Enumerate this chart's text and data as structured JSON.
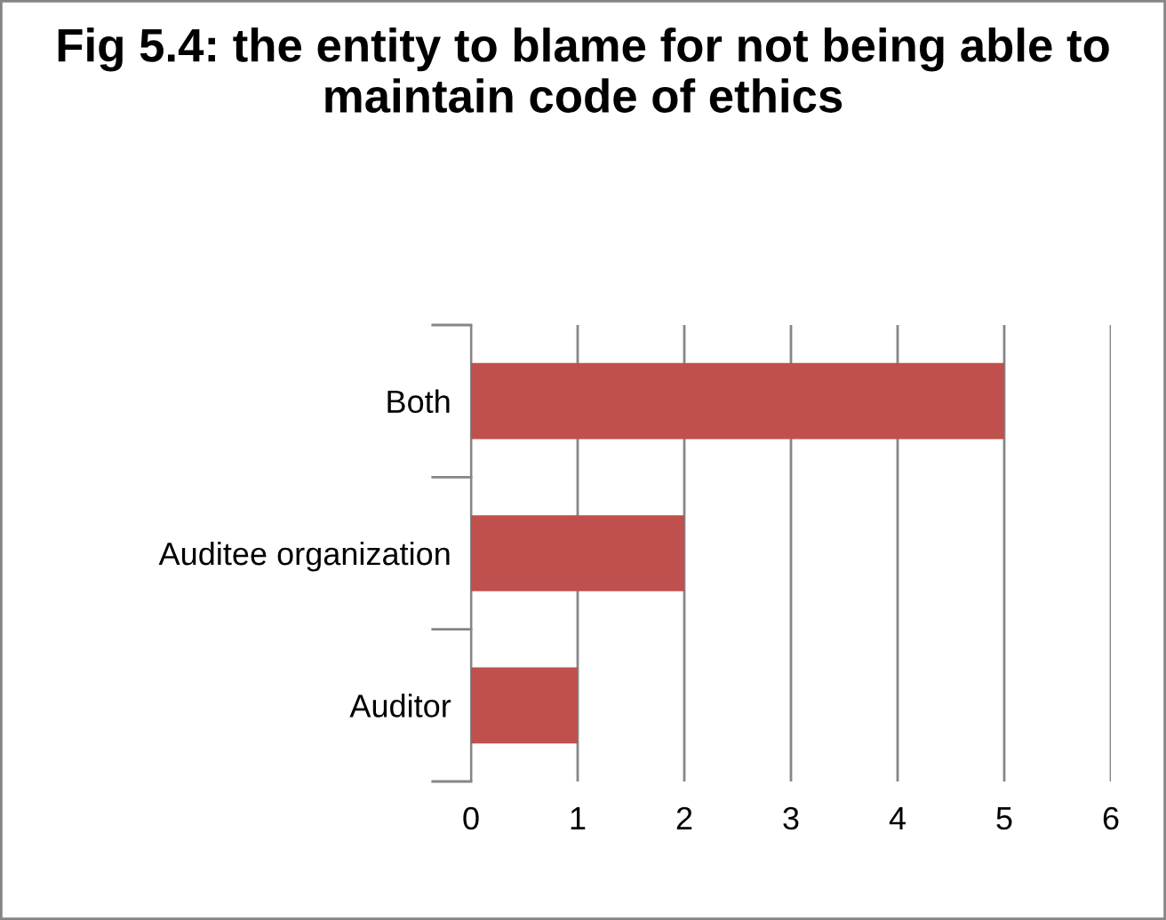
{
  "chart_data": {
    "type": "bar",
    "orientation": "horizontal",
    "title": "Fig 5.4: the entity to blame for not being able to maintain code of ethics",
    "categories": [
      "Both",
      "Auditee organization",
      "Auditor"
    ],
    "values": [
      5,
      2,
      1
    ],
    "color": "#c0504d",
    "xlim": [
      0,
      6
    ],
    "xticks": [
      0,
      1,
      2,
      3,
      4,
      5,
      6
    ],
    "grid": "x"
  }
}
